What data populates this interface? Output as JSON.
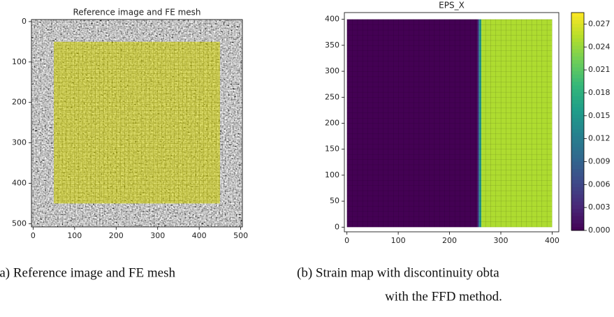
{
  "chart_data": [
    {
      "type": "image",
      "title": "Reference image and FE mesh",
      "xlim": [
        -4,
        504
      ],
      "ylim": [
        508,
        -5
      ],
      "xticks": [
        0,
        100,
        200,
        300,
        400,
        500
      ],
      "yticks": [
        0,
        100,
        200,
        300,
        400,
        500
      ],
      "mesh_x": [
        50,
        450
      ],
      "mesh_y": [
        50,
        450
      ],
      "mesh_color": "#d4d400"
    },
    {
      "type": "heatmap",
      "title": "EPS_X",
      "x_edges": [
        0,
        255,
        258,
        262,
        400
      ],
      "values": [
        0,
        0.006,
        0.015,
        0.025
      ],
      "y_range": [
        0,
        400
      ],
      "xlim": [
        -5,
        413
      ],
      "ylim": [
        -9,
        413
      ],
      "xticks": [
        0,
        100,
        200,
        300,
        400
      ],
      "yticks": [
        0,
        50,
        100,
        150,
        200,
        250,
        300,
        350,
        400
      ],
      "colorbar": {
        "lim": [
          0,
          0.0285
        ],
        "ticks": [
          {
            "value": 0,
            "label": "0.000"
          },
          {
            "value": 0.003,
            "label": "0.003"
          },
          {
            "value": 0.006,
            "label": "0.006"
          },
          {
            "value": 0.009,
            "label": "0.009"
          },
          {
            "value": 0.012,
            "label": "0.012"
          },
          {
            "value": 0.015,
            "label": "0.015"
          },
          {
            "value": 0.018,
            "label": "0.018"
          },
          {
            "value": 0.021,
            "label": "0.021"
          },
          {
            "value": 0.024,
            "label": "0.024"
          },
          {
            "value": 0.027,
            "label": "0.027"
          }
        ]
      }
    }
  ],
  "captions": [
    "(a) Reference image and FE mesh",
    "(b) Strain map with discontinuity obta",
    "with the FFD method."
  ]
}
